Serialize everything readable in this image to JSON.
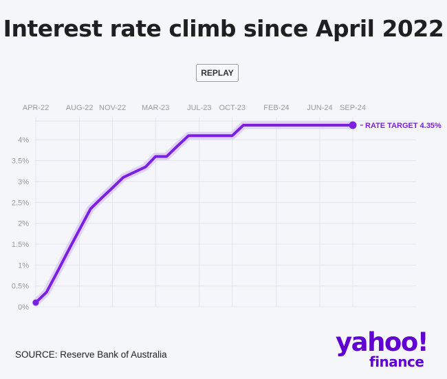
{
  "title": "Interest rate climb since April 2022",
  "replay_label": "REPLAY",
  "source": "SOURCE: Reserve Bank of Australia",
  "logo": {
    "wordmark": "yahoo!",
    "subword": "finance"
  },
  "colors": {
    "line": "#7b1fe0",
    "halo": "#ddcdf7",
    "grid": "#e2e5ec",
    "tick": "#9b9b9b"
  },
  "chart_data": {
    "type": "line",
    "title": "Interest rate climb since April 2022",
    "xlabel": "",
    "ylabel": "",
    "x_ticks": [
      "APR-22",
      "AUG-22",
      "NOV-22",
      "MAR-23",
      "JUL-23",
      "OCT-23",
      "FEB-24",
      "JUN-24",
      "SEP-24"
    ],
    "x_tick_dates": [
      "2022-04-01",
      "2022-08-01",
      "2022-11-01",
      "2023-03-01",
      "2023-07-01",
      "2023-10-01",
      "2024-02-01",
      "2024-06-01",
      "2024-09-01"
    ],
    "y_ticks": [
      "0%",
      "0.5%",
      "1%",
      "1.5%",
      "2%",
      "2.5%",
      "3%",
      "3.5%",
      "4%"
    ],
    "ylim": [
      0,
      4.35
    ],
    "xlim": [
      "2022-04-01",
      "2024-09-01"
    ],
    "grid": true,
    "points": [
      {
        "x": "2022-04-01",
        "y": 0.1
      },
      {
        "x": "2022-05-01",
        "y": 0.35
      },
      {
        "x": "2022-06-01",
        "y": 0.85
      },
      {
        "x": "2022-07-01",
        "y": 1.35
      },
      {
        "x": "2022-08-01",
        "y": 1.85
      },
      {
        "x": "2022-09-01",
        "y": 2.35
      },
      {
        "x": "2022-10-01",
        "y": 2.6
      },
      {
        "x": "2022-11-01",
        "y": 2.85
      },
      {
        "x": "2022-12-01",
        "y": 3.1
      },
      {
        "x": "2023-02-01",
        "y": 3.35
      },
      {
        "x": "2023-03-01",
        "y": 3.6
      },
      {
        "x": "2023-04-01",
        "y": 3.6
      },
      {
        "x": "2023-05-01",
        "y": 3.85
      },
      {
        "x": "2023-06-01",
        "y": 4.1
      },
      {
        "x": "2023-07-01",
        "y": 4.1
      },
      {
        "x": "2023-10-01",
        "y": 4.1
      },
      {
        "x": "2023-11-01",
        "y": 4.35
      },
      {
        "x": "2024-09-01",
        "y": 4.35
      }
    ],
    "annotation": "RATE TARGET 4.35%"
  }
}
